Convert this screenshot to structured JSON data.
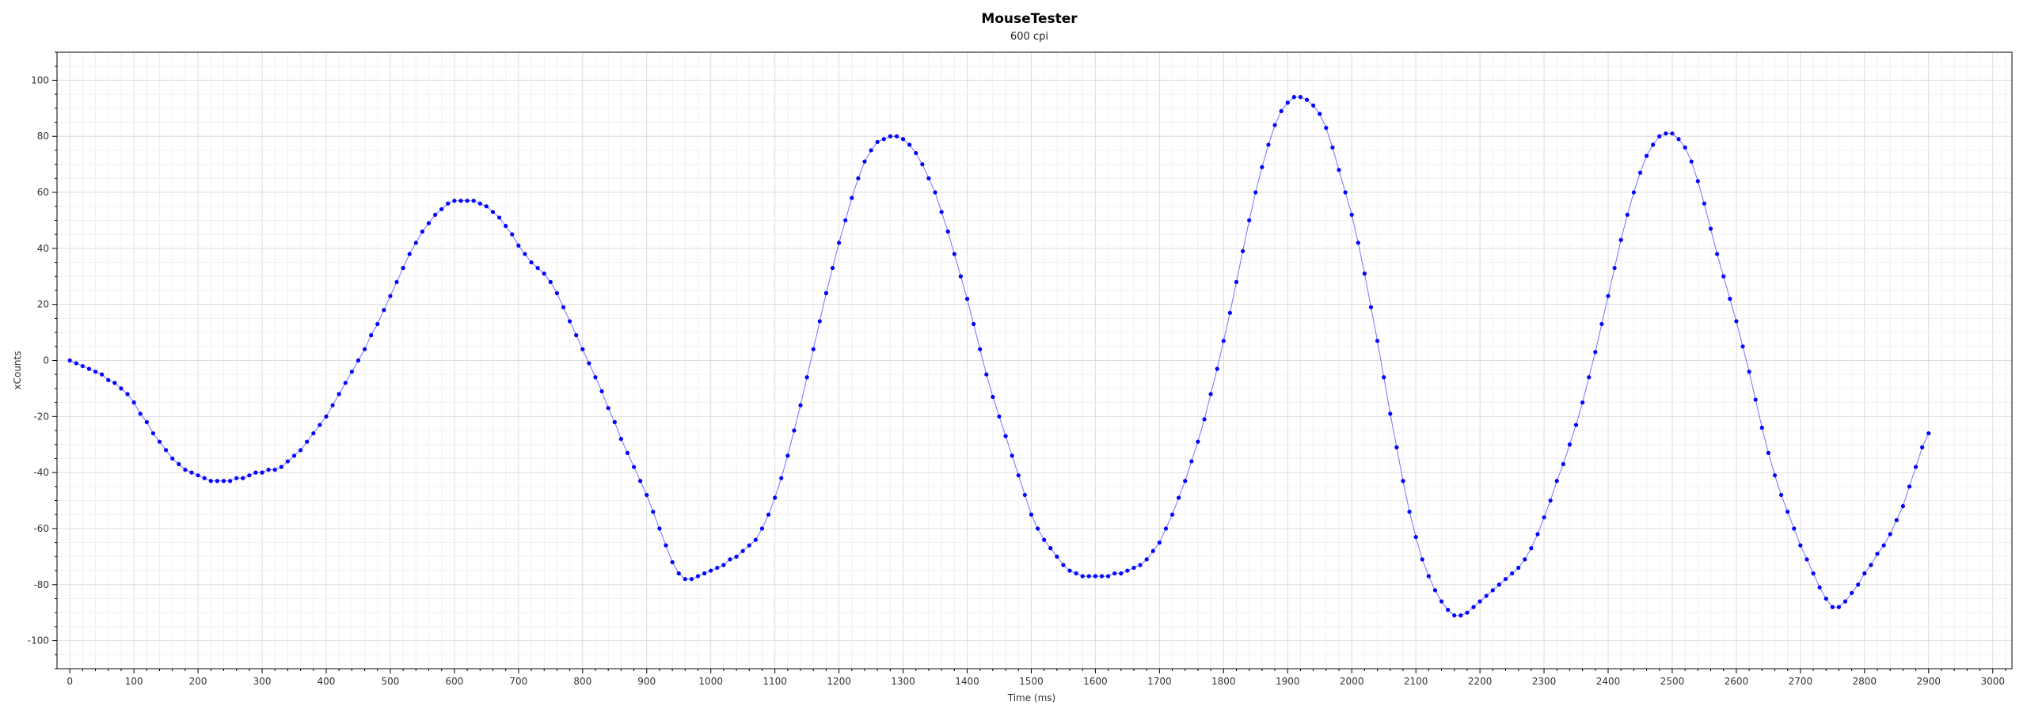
{
  "chart_data": {
    "type": "scatter",
    "title": "MouseTester",
    "subtitle": "600 cpi",
    "xlabel": "Time (ms)",
    "ylabel": "xCounts",
    "xlim": [
      -20,
      3030
    ],
    "ylim": [
      -110,
      110
    ],
    "x_ticks": [
      0,
      100,
      200,
      300,
      400,
      500,
      600,
      700,
      800,
      900,
      1000,
      1100,
      1200,
      1300,
      1400,
      1500,
      1600,
      1700,
      1800,
      1900,
      2000,
      2100,
      2200,
      2300,
      2400,
      2500,
      2600,
      2700,
      2800,
      2900,
      3000
    ],
    "y_ticks": [
      -100,
      -80,
      -60,
      -40,
      -20,
      0,
      20,
      40,
      60,
      80,
      100
    ],
    "grid": true,
    "colors": {
      "series": "#0000ff",
      "grid": "#e6e6e6",
      "axis": "#000000"
    },
    "series": [
      {
        "points": [
          [
            0,
            0
          ],
          [
            10,
            -1
          ],
          [
            20,
            -2
          ],
          [
            30,
            -3
          ],
          [
            40,
            -4
          ],
          [
            50,
            -5
          ],
          [
            60,
            -7
          ],
          [
            70,
            -8
          ],
          [
            80,
            -10
          ],
          [
            90,
            -12
          ],
          [
            100,
            -15
          ],
          [
            110,
            -19
          ],
          [
            120,
            -22
          ],
          [
            130,
            -26
          ],
          [
            140,
            -29
          ],
          [
            150,
            -32
          ],
          [
            160,
            -35
          ],
          [
            170,
            -37
          ],
          [
            180,
            -39
          ],
          [
            190,
            -40
          ],
          [
            200,
            -41
          ],
          [
            210,
            -42
          ],
          [
            220,
            -43
          ],
          [
            230,
            -43
          ],
          [
            240,
            -43
          ],
          [
            250,
            -43
          ],
          [
            260,
            -42
          ],
          [
            270,
            -42
          ],
          [
            280,
            -41
          ],
          [
            290,
            -40
          ],
          [
            300,
            -40
          ],
          [
            310,
            -39
          ],
          [
            320,
            -39
          ],
          [
            330,
            -38
          ],
          [
            340,
            -36
          ],
          [
            350,
            -34
          ],
          [
            360,
            -32
          ],
          [
            370,
            -29
          ],
          [
            380,
            -26
          ],
          [
            390,
            -23
          ],
          [
            400,
            -20
          ],
          [
            410,
            -16
          ],
          [
            420,
            -12
          ],
          [
            430,
            -8
          ],
          [
            440,
            -4
          ],
          [
            450,
            0
          ],
          [
            460,
            4
          ],
          [
            470,
            9
          ],
          [
            480,
            13
          ],
          [
            490,
            18
          ],
          [
            500,
            23
          ],
          [
            510,
            28
          ],
          [
            520,
            33
          ],
          [
            530,
            38
          ],
          [
            540,
            42
          ],
          [
            550,
            46
          ],
          [
            560,
            49
          ],
          [
            570,
            52
          ],
          [
            580,
            54
          ],
          [
            590,
            56
          ],
          [
            600,
            57
          ],
          [
            610,
            57
          ],
          [
            620,
            57
          ],
          [
            630,
            57
          ],
          [
            640,
            56
          ],
          [
            650,
            55
          ],
          [
            660,
            53
          ],
          [
            670,
            51
          ],
          [
            680,
            48
          ],
          [
            690,
            45
          ],
          [
            700,
            41
          ],
          [
            710,
            38
          ],
          [
            720,
            35
          ],
          [
            730,
            33
          ],
          [
            740,
            31
          ],
          [
            750,
            28
          ],
          [
            760,
            24
          ],
          [
            770,
            19
          ],
          [
            780,
            14
          ],
          [
            790,
            9
          ],
          [
            800,
            4
          ],
          [
            810,
            -1
          ],
          [
            820,
            -6
          ],
          [
            830,
            -11
          ],
          [
            840,
            -17
          ],
          [
            850,
            -22
          ],
          [
            860,
            -28
          ],
          [
            870,
            -33
          ],
          [
            880,
            -38
          ],
          [
            890,
            -43
          ],
          [
            900,
            -48
          ],
          [
            910,
            -54
          ],
          [
            920,
            -60
          ],
          [
            930,
            -66
          ],
          [
            940,
            -72
          ],
          [
            950,
            -76
          ],
          [
            960,
            -78
          ],
          [
            970,
            -78
          ],
          [
            980,
            -77
          ],
          [
            990,
            -76
          ],
          [
            1000,
            -75
          ],
          [
            1010,
            -74
          ],
          [
            1020,
            -73
          ],
          [
            1030,
            -71
          ],
          [
            1040,
            -70
          ],
          [
            1050,
            -68
          ],
          [
            1060,
            -66
          ],
          [
            1070,
            -64
          ],
          [
            1080,
            -60
          ],
          [
            1090,
            -55
          ],
          [
            1100,
            -49
          ],
          [
            1110,
            -42
          ],
          [
            1120,
            -34
          ],
          [
            1130,
            -25
          ],
          [
            1140,
            -16
          ],
          [
            1150,
            -6
          ],
          [
            1160,
            4
          ],
          [
            1170,
            14
          ],
          [
            1180,
            24
          ],
          [
            1190,
            33
          ],
          [
            1200,
            42
          ],
          [
            1210,
            50
          ],
          [
            1220,
            58
          ],
          [
            1230,
            65
          ],
          [
            1240,
            71
          ],
          [
            1250,
            75
          ],
          [
            1260,
            78
          ],
          [
            1270,
            79
          ],
          [
            1280,
            80
          ],
          [
            1290,
            80
          ],
          [
            1300,
            79
          ],
          [
            1310,
            77
          ],
          [
            1320,
            74
          ],
          [
            1330,
            70
          ],
          [
            1340,
            65
          ],
          [
            1350,
            60
          ],
          [
            1360,
            53
          ],
          [
            1370,
            46
          ],
          [
            1380,
            38
          ],
          [
            1390,
            30
          ],
          [
            1400,
            22
          ],
          [
            1410,
            13
          ],
          [
            1420,
            4
          ],
          [
            1430,
            -5
          ],
          [
            1440,
            -13
          ],
          [
            1450,
            -20
          ],
          [
            1460,
            -27
          ],
          [
            1470,
            -34
          ],
          [
            1480,
            -41
          ],
          [
            1490,
            -48
          ],
          [
            1500,
            -55
          ],
          [
            1510,
            -60
          ],
          [
            1520,
            -64
          ],
          [
            1530,
            -67
          ],
          [
            1540,
            -70
          ],
          [
            1550,
            -73
          ],
          [
            1560,
            -75
          ],
          [
            1570,
            -76
          ],
          [
            1580,
            -77
          ],
          [
            1590,
            -77
          ],
          [
            1600,
            -77
          ],
          [
            1610,
            -77
          ],
          [
            1620,
            -77
          ],
          [
            1630,
            -76
          ],
          [
            1640,
            -76
          ],
          [
            1650,
            -75
          ],
          [
            1660,
            -74
          ],
          [
            1670,
            -73
          ],
          [
            1680,
            -71
          ],
          [
            1690,
            -68
          ],
          [
            1700,
            -65
          ],
          [
            1710,
            -60
          ],
          [
            1720,
            -55
          ],
          [
            1730,
            -49
          ],
          [
            1740,
            -43
          ],
          [
            1750,
            -36
          ],
          [
            1760,
            -29
          ],
          [
            1770,
            -21
          ],
          [
            1780,
            -12
          ],
          [
            1790,
            -3
          ],
          [
            1800,
            7
          ],
          [
            1810,
            17
          ],
          [
            1820,
            28
          ],
          [
            1830,
            39
          ],
          [
            1840,
            50
          ],
          [
            1850,
            60
          ],
          [
            1860,
            69
          ],
          [
            1870,
            77
          ],
          [
            1880,
            84
          ],
          [
            1890,
            89
          ],
          [
            1900,
            92
          ],
          [
            1910,
            94
          ],
          [
            1920,
            94
          ],
          [
            1930,
            93
          ],
          [
            1940,
            91
          ],
          [
            1950,
            88
          ],
          [
            1960,
            83
          ],
          [
            1970,
            76
          ],
          [
            1980,
            68
          ],
          [
            1990,
            60
          ],
          [
            2000,
            52
          ],
          [
            2010,
            42
          ],
          [
            2020,
            31
          ],
          [
            2030,
            19
          ],
          [
            2040,
            7
          ],
          [
            2050,
            -6
          ],
          [
            2060,
            -19
          ],
          [
            2070,
            -31
          ],
          [
            2080,
            -43
          ],
          [
            2090,
            -54
          ],
          [
            2100,
            -63
          ],
          [
            2110,
            -71
          ],
          [
            2120,
            -77
          ],
          [
            2130,
            -82
          ],
          [
            2140,
            -86
          ],
          [
            2150,
            -89
          ],
          [
            2160,
            -91
          ],
          [
            2170,
            -91
          ],
          [
            2180,
            -90
          ],
          [
            2190,
            -88
          ],
          [
            2200,
            -86
          ],
          [
            2210,
            -84
          ],
          [
            2220,
            -82
          ],
          [
            2230,
            -80
          ],
          [
            2240,
            -78
          ],
          [
            2250,
            -76
          ],
          [
            2260,
            -74
          ],
          [
            2270,
            -71
          ],
          [
            2280,
            -67
          ],
          [
            2290,
            -62
          ],
          [
            2300,
            -56
          ],
          [
            2310,
            -50
          ],
          [
            2320,
            -43
          ],
          [
            2330,
            -37
          ],
          [
            2340,
            -30
          ],
          [
            2350,
            -23
          ],
          [
            2360,
            -15
          ],
          [
            2370,
            -6
          ],
          [
            2380,
            3
          ],
          [
            2390,
            13
          ],
          [
            2400,
            23
          ],
          [
            2410,
            33
          ],
          [
            2420,
            43
          ],
          [
            2430,
            52
          ],
          [
            2440,
            60
          ],
          [
            2450,
            67
          ],
          [
            2460,
            73
          ],
          [
            2470,
            77
          ],
          [
            2480,
            80
          ],
          [
            2490,
            81
          ],
          [
            2500,
            81
          ],
          [
            2510,
            79
          ],
          [
            2520,
            76
          ],
          [
            2530,
            71
          ],
          [
            2540,
            64
          ],
          [
            2550,
            56
          ],
          [
            2560,
            47
          ],
          [
            2570,
            38
          ],
          [
            2580,
            30
          ],
          [
            2590,
            22
          ],
          [
            2600,
            14
          ],
          [
            2610,
            5
          ],
          [
            2620,
            -4
          ],
          [
            2630,
            -14
          ],
          [
            2640,
            -24
          ],
          [
            2650,
            -33
          ],
          [
            2660,
            -41
          ],
          [
            2670,
            -48
          ],
          [
            2680,
            -54
          ],
          [
            2690,
            -60
          ],
          [
            2700,
            -66
          ],
          [
            2710,
            -71
          ],
          [
            2720,
            -76
          ],
          [
            2730,
            -81
          ],
          [
            2740,
            -85
          ],
          [
            2750,
            -88
          ],
          [
            2760,
            -88
          ],
          [
            2770,
            -86
          ],
          [
            2780,
            -83
          ],
          [
            2790,
            -80
          ],
          [
            2800,
            -76
          ],
          [
            2810,
            -73
          ],
          [
            2820,
            -69
          ],
          [
            2830,
            -66
          ],
          [
            2840,
            -62
          ],
          [
            2850,
            -57
          ],
          [
            2860,
            -52
          ],
          [
            2870,
            -45
          ],
          [
            2880,
            -38
          ],
          [
            2890,
            -31
          ],
          [
            2900,
            -26
          ]
        ]
      }
    ]
  }
}
